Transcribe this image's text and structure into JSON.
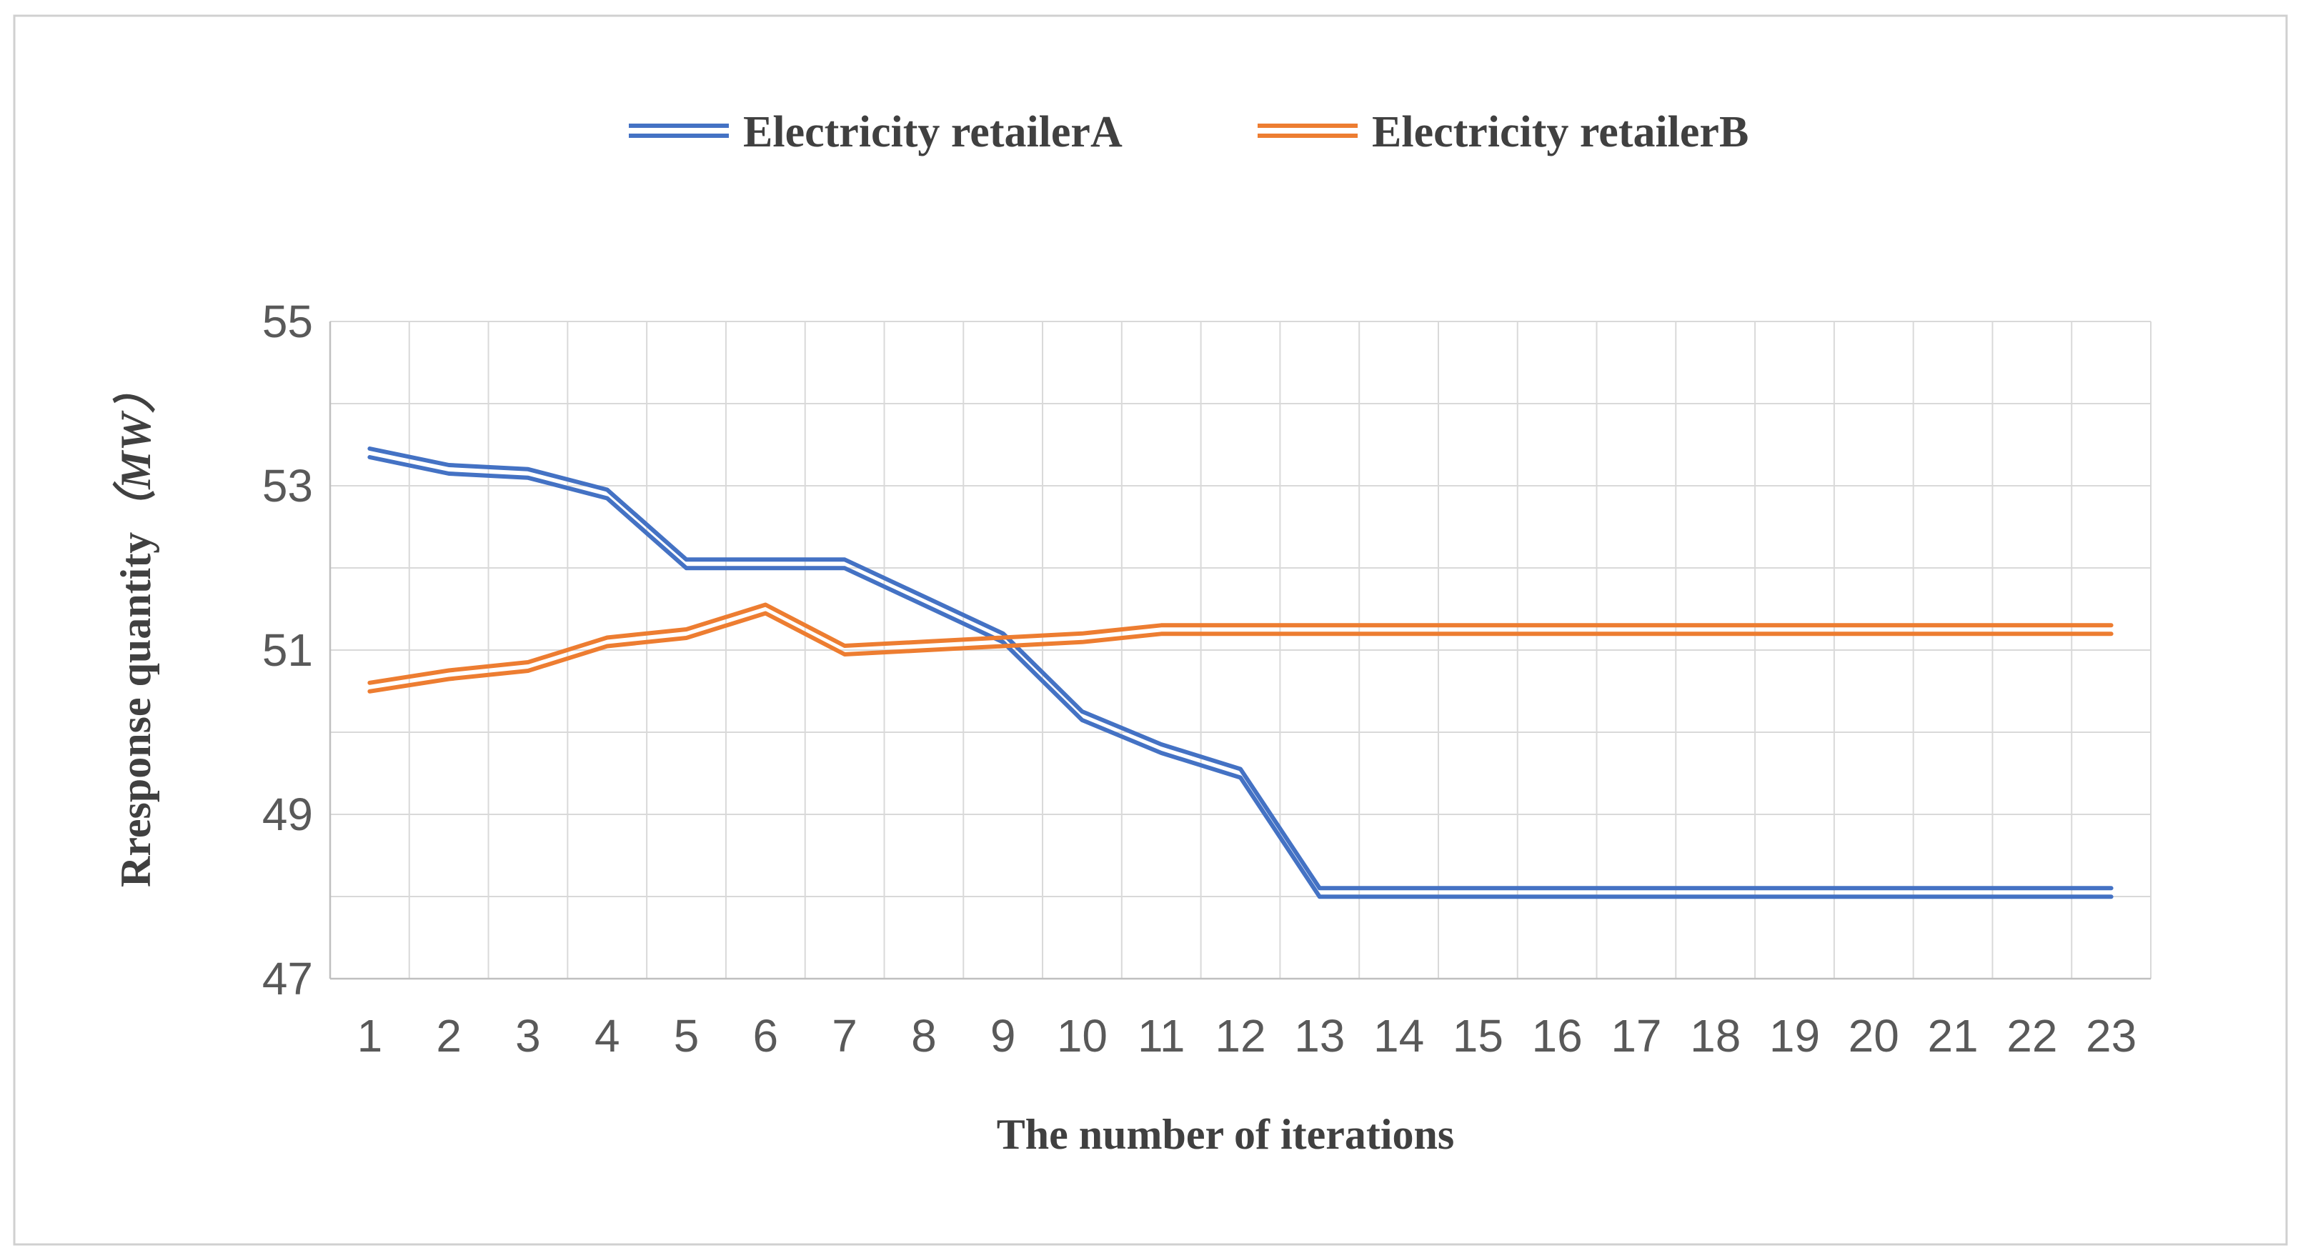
{
  "chart_data": {
    "type": "line",
    "title": "",
    "xlabel": "The number of iterations",
    "ylabel": "Rresponse quantity",
    "ylabel_unit": "（MW）",
    "categories": [
      "1",
      "2",
      "3",
      "4",
      "5",
      "6",
      "7",
      "8",
      "9",
      "10",
      "11",
      "12",
      "13",
      "14",
      "15",
      "16",
      "17",
      "18",
      "19",
      "20",
      "21",
      "22",
      "23"
    ],
    "ylim": [
      47,
      55
    ],
    "yticks": [
      "55",
      "53",
      "51",
      "49",
      "47"
    ],
    "ytick_values": [
      55,
      53,
      51,
      49,
      47
    ],
    "grid": true,
    "legend_position": "top-center",
    "series": [
      {
        "name": "Electricity retailerA",
        "color": "#4472C4",
        "values": [
          53.4,
          53.2,
          53.15,
          52.9,
          52.05,
          52.05,
          52.05,
          51.6,
          51.15,
          50.2,
          49.8,
          49.5,
          48.05,
          48.05,
          48.05,
          48.05,
          48.05,
          48.05,
          48.05,
          48.05,
          48.05,
          48.05,
          48.05
        ]
      },
      {
        "name": "Electricity retailerB",
        "color": "#ED7D31",
        "values": [
          50.55,
          50.7,
          50.8,
          51.1,
          51.2,
          51.5,
          51.0,
          51.05,
          51.1,
          51.15,
          51.25,
          51.25,
          51.25,
          51.25,
          51.25,
          51.25,
          51.25,
          51.25,
          51.25,
          51.25,
          51.25,
          51.25,
          51.25
        ]
      }
    ]
  }
}
